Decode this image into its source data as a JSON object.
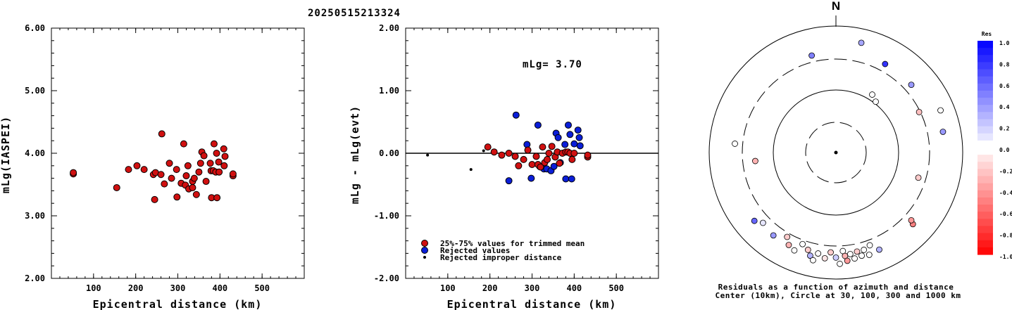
{
  "chart_data": [
    {
      "type": "scatter",
      "title": "20250515213324",
      "xlabel": "Epicentral distance (km)",
      "ylabel": "mLg(IASPEI)",
      "xlim": [
        0,
        600
      ],
      "ylim": [
        2.0,
        6.0
      ],
      "xticks": [
        "100",
        "200",
        "300",
        "400",
        "500"
      ],
      "yticks": [
        "2.00",
        "3.00",
        "4.00",
        "5.00",
        "6.00"
      ],
      "points": [
        {
          "x": 52,
          "y": 3.67
        },
        {
          "x": 52,
          "y": 3.69
        },
        {
          "x": 155,
          "y": 3.45
        },
        {
          "x": 183,
          "y": 3.74
        },
        {
          "x": 203,
          "y": 3.8
        },
        {
          "x": 220,
          "y": 3.74
        },
        {
          "x": 242,
          "y": 3.66
        },
        {
          "x": 247,
          "y": 3.69
        },
        {
          "x": 245,
          "y": 3.26
        },
        {
          "x": 260,
          "y": 3.66
        },
        {
          "x": 262,
          "y": 4.31
        },
        {
          "x": 268,
          "y": 3.51
        },
        {
          "x": 280,
          "y": 3.84
        },
        {
          "x": 285,
          "y": 3.6
        },
        {
          "x": 297,
          "y": 3.74
        },
        {
          "x": 298,
          "y": 3.3
        },
        {
          "x": 308,
          "y": 3.52
        },
        {
          "x": 314,
          "y": 4.15
        },
        {
          "x": 318,
          "y": 3.49
        },
        {
          "x": 320,
          "y": 3.64
        },
        {
          "x": 324,
          "y": 3.8
        },
        {
          "x": 326,
          "y": 3.43
        },
        {
          "x": 335,
          "y": 3.45
        },
        {
          "x": 335,
          "y": 3.55
        },
        {
          "x": 339,
          "y": 3.6
        },
        {
          "x": 344,
          "y": 3.34
        },
        {
          "x": 350,
          "y": 3.7
        },
        {
          "x": 354,
          "y": 3.84
        },
        {
          "x": 357,
          "y": 4.02
        },
        {
          "x": 362,
          "y": 3.96
        },
        {
          "x": 367,
          "y": 3.55
        },
        {
          "x": 377,
          "y": 3.84
        },
        {
          "x": 379,
          "y": 3.72
        },
        {
          "x": 380,
          "y": 3.29
        },
        {
          "x": 384,
          "y": 3.72
        },
        {
          "x": 386,
          "y": 4.15
        },
        {
          "x": 390,
          "y": 3.7
        },
        {
          "x": 392,
          "y": 4.0
        },
        {
          "x": 393,
          "y": 3.29
        },
        {
          "x": 397,
          "y": 3.86
        },
        {
          "x": 398,
          "y": 3.7
        },
        {
          "x": 409,
          "y": 4.07
        },
        {
          "x": 412,
          "y": 3.95
        },
        {
          "x": 410,
          "y": 3.8
        },
        {
          "x": 431,
          "y": 3.64
        },
        {
          "x": 431,
          "y": 3.67
        }
      ],
      "color": "#d01010"
    },
    {
      "type": "scatter",
      "xlabel": "Epicentral distance (km)",
      "ylabel": "mLg - mLg(evt)",
      "xlim": [
        0,
        600
      ],
      "ylim": [
        -2.0,
        2.0
      ],
      "xticks": [
        "100",
        "200",
        "300",
        "400",
        "500"
      ],
      "yticks": [
        "-2.00",
        "-1.00",
        "0.00",
        "1.00",
        "2.00"
      ],
      "annotation": "mLg= 3.70",
      "reference_line": 0.0,
      "legend": [
        {
          "label": "25%-75% values for trimmed mean",
          "color": "#d01010"
        },
        {
          "label": "Rejected values",
          "color": "#0a1ed8"
        },
        {
          "label": "Rejected improper distance",
          "color": "#000000"
        }
      ],
      "series": [
        {
          "name": "25%-75% values for trimmed mean",
          "color": "#d01010",
          "points": [
            {
              "x": 195,
              "y": 0.1
            },
            {
              "x": 210,
              "y": 0.02
            },
            {
              "x": 228,
              "y": -0.03
            },
            {
              "x": 245,
              "y": 0.0
            },
            {
              "x": 260,
              "y": -0.05
            },
            {
              "x": 268,
              "y": -0.2
            },
            {
              "x": 280,
              "y": -0.1
            },
            {
              "x": 290,
              "y": 0.05
            },
            {
              "x": 300,
              "y": -0.18
            },
            {
              "x": 310,
              "y": -0.05
            },
            {
              "x": 314,
              "y": -0.18
            },
            {
              "x": 320,
              "y": -0.22
            },
            {
              "x": 325,
              "y": 0.1
            },
            {
              "x": 330,
              "y": -0.15
            },
            {
              "x": 336,
              "y": -0.1
            },
            {
              "x": 340,
              "y": 0.0
            },
            {
              "x": 347,
              "y": 0.11
            },
            {
              "x": 355,
              "y": -0.06
            },
            {
              "x": 360,
              "y": 0.02
            },
            {
              "x": 365,
              "y": -0.16
            },
            {
              "x": 372,
              "y": 0.0
            },
            {
              "x": 380,
              "y": 0.02
            },
            {
              "x": 385,
              "y": 0.02
            },
            {
              "x": 390,
              "y": 0.0
            },
            {
              "x": 395,
              "y": -0.1
            },
            {
              "x": 400,
              "y": 0.0
            },
            {
              "x": 432,
              "y": -0.06
            },
            {
              "x": 432,
              "y": -0.03
            }
          ]
        },
        {
          "name": "Rejected values",
          "color": "#0a1ed8",
          "points": [
            {
              "x": 245,
              "y": -0.44
            },
            {
              "x": 262,
              "y": 0.61
            },
            {
              "x": 288,
              "y": 0.14
            },
            {
              "x": 298,
              "y": -0.4
            },
            {
              "x": 314,
              "y": 0.45
            },
            {
              "x": 318,
              "y": -0.21
            },
            {
              "x": 328,
              "y": -0.25
            },
            {
              "x": 335,
              "y": -0.25
            },
            {
              "x": 345,
              "y": -0.28
            },
            {
              "x": 352,
              "y": -0.21
            },
            {
              "x": 357,
              "y": 0.32
            },
            {
              "x": 362,
              "y": 0.25
            },
            {
              "x": 367,
              "y": -0.15
            },
            {
              "x": 378,
              "y": 0.14
            },
            {
              "x": 380,
              "y": -0.41
            },
            {
              "x": 386,
              "y": 0.45
            },
            {
              "x": 390,
              "y": 0.3
            },
            {
              "x": 394,
              "y": -0.41
            },
            {
              "x": 400,
              "y": 0.15
            },
            {
              "x": 409,
              "y": 0.37
            },
            {
              "x": 412,
              "y": 0.25
            },
            {
              "x": 414,
              "y": 0.12
            }
          ]
        },
        {
          "name": "Rejected improper distance",
          "color": "#000000",
          "points": [
            {
              "x": 52,
              "y": -0.03
            },
            {
              "x": 155,
              "y": -0.26
            },
            {
              "x": 185,
              "y": 0.04
            }
          ]
        }
      ]
    },
    {
      "type": "polar-scatter",
      "title": "N",
      "caption_lines": [
        "Residuals as a function of azimuth and distance",
        "Center (10km), Circle at 30, 100, 300 and 1000 km"
      ],
      "colorbar": {
        "title": "Res",
        "ticks": [
          "1.0",
          "0.8",
          "0.6",
          "0.4",
          "0.2",
          "0.0",
          "-0.2",
          "-0.4",
          "-0.6",
          "-0.8",
          "-1.0"
        ],
        "positive_color": "#0000ff",
        "negative_color": "#ff0000"
      },
      "points": [
        {
          "az": 13,
          "r": 0.89,
          "res": 0.35
        },
        {
          "az": 29,
          "r": 0.8,
          "res": 0.8
        },
        {
          "az": 346,
          "r": 0.79,
          "res": 0.5
        },
        {
          "az": 48,
          "r": 0.8,
          "res": 0.4
        },
        {
          "az": 38,
          "r": 0.51,
          "res": 0.0
        },
        {
          "az": 32,
          "r": 0.54,
          "res": 0.0
        },
        {
          "az": 64,
          "r": 0.73,
          "res": -0.25
        },
        {
          "az": 68,
          "r": 0.89,
          "res": 0.0
        },
        {
          "az": 79,
          "r": 0.86,
          "res": 0.4
        },
        {
          "az": 275,
          "r": 0.8,
          "res": 0.0
        },
        {
          "az": 264,
          "r": 0.64,
          "res": -0.3
        },
        {
          "az": 107,
          "r": 0.68,
          "res": -0.2
        },
        {
          "az": 133,
          "r": 0.83,
          "res": -0.5
        },
        {
          "az": 132,
          "r": 0.8,
          "res": -0.4
        },
        {
          "az": 230,
          "r": 0.84,
          "res": 0.6
        },
        {
          "az": 226,
          "r": 0.8,
          "res": 0.1
        },
        {
          "az": 217,
          "r": 0.82,
          "res": 0.4
        },
        {
          "az": 210,
          "r": 0.77,
          "res": -0.2
        },
        {
          "az": 207,
          "r": 0.82,
          "res": -0.3
        },
        {
          "az": 200,
          "r": 0.77,
          "res": 0.0
        },
        {
          "az": 203,
          "r": 0.84,
          "res": 0.0
        },
        {
          "az": 196,
          "r": 0.8,
          "res": -0.2
        },
        {
          "az": 194,
          "r": 0.84,
          "res": 0.3
        },
        {
          "az": 192,
          "r": 0.87,
          "res": 0.0
        },
        {
          "az": 190,
          "r": 0.81,
          "res": 0.0
        },
        {
          "az": 186,
          "r": 0.84,
          "res": -0.1
        },
        {
          "az": 183,
          "r": 0.79,
          "res": -0.2
        },
        {
          "az": 180,
          "r": 0.83,
          "res": 0.2
        },
        {
          "az": 178,
          "r": 0.88,
          "res": 0.0
        },
        {
          "az": 176,
          "r": 0.78,
          "res": 0.0
        },
        {
          "az": 175,
          "r": 0.82,
          "res": -0.3
        },
        {
          "az": 174,
          "r": 0.86,
          "res": -0.4
        },
        {
          "az": 172,
          "r": 0.81,
          "res": 0.0
        },
        {
          "az": 170,
          "r": 0.85,
          "res": 0.0
        },
        {
          "az": 168,
          "r": 0.8,
          "res": -0.2
        },
        {
          "az": 166,
          "r": 0.84,
          "res": 0.0
        },
        {
          "az": 164,
          "r": 0.8,
          "res": 0.0
        },
        {
          "az": 162,
          "r": 0.85,
          "res": 0.0
        },
        {
          "az": 160,
          "r": 0.78,
          "res": 0.0
        },
        {
          "az": 156,
          "r": 0.84,
          "res": 0.3
        }
      ]
    }
  ]
}
